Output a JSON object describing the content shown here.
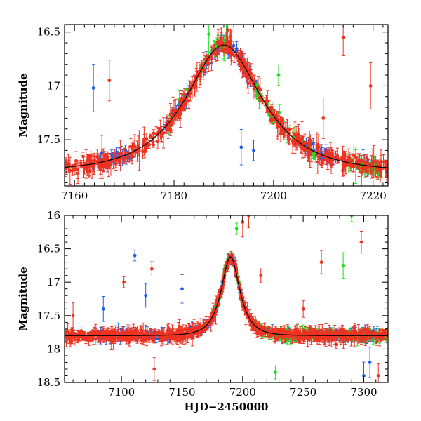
{
  "chart_data": [
    {
      "type": "scatter",
      "name": "light-curve-zoom",
      "xlabel": "",
      "ylabel": "Magnitude",
      "xlim": [
        7158,
        7223
      ],
      "ylim": [
        17.93,
        16.43
      ],
      "y_inverted": true,
      "xticks": [
        7160,
        7180,
        7200,
        7220
      ],
      "xtick_labels": [
        "7160",
        "7180",
        "7200",
        "7220"
      ],
      "yticks": [
        16.5,
        17,
        17.5
      ],
      "ytick_labels": [
        "16.5",
        "17",
        "17.5"
      ],
      "model_curve": {
        "color": "#000000",
        "peak_x": 7190,
        "peak_mag": 16.62,
        "baseline_mag": 17.8,
        "tE": 12
      },
      "series": [
        {
          "name": "blue",
          "color": "#1f5fe6",
          "ranges": [
            [
              7163,
              7172
            ],
            [
              7178,
              7183
            ],
            [
              7186,
              7197
            ],
            [
              7205,
              7212
            ],
            [
              7218,
              7221
            ]
          ],
          "outliers": [
            [
              7163.8,
              17.02
            ],
            [
              7165.5,
              17.62
            ],
            [
              7193.5,
              17.57
            ],
            [
              7196.0,
              17.6
            ]
          ]
        },
        {
          "name": "green",
          "color": "#22dd22",
          "ranges": [
            [
              7179,
              7183
            ],
            [
              7184,
              7191
            ],
            [
              7196,
              7209
            ],
            [
              7214,
              7223
            ]
          ],
          "outliers": [
            [
              7187.0,
              16.52
            ],
            [
              7190.5,
              16.42
            ],
            [
              7201.0,
              16.9
            ],
            [
              7216.5,
              17.75
            ]
          ]
        },
        {
          "name": "red",
          "color": "#ee3322",
          "ranges": [
            [
              7158,
              7223
            ]
          ],
          "outliers": [
            [
              7167.0,
              16.95
            ],
            [
              7173.0,
              17.6
            ],
            [
              7190.8,
              16.48
            ],
            [
              7210.0,
              17.3
            ],
            [
              7214.0,
              16.55
            ],
            [
              7219.5,
              17.0
            ]
          ]
        }
      ]
    },
    {
      "type": "scatter",
      "name": "light-curve-full",
      "xlabel": "HJD−2450000",
      "ylabel": "Magnitude",
      "xlim": [
        7053,
        7320
      ],
      "ylim": [
        18.5,
        16
      ],
      "y_inverted": true,
      "xticks": [
        7100,
        7150,
        7200,
        7250,
        7300
      ],
      "xtick_labels": [
        "7100",
        "7150",
        "7200",
        "7250",
        "7300"
      ],
      "yticks": [
        16,
        16.5,
        17,
        17.5,
        18,
        18.5
      ],
      "ytick_labels": [
        "16",
        "16.5",
        "17",
        "17.5",
        "18",
        "18.5"
      ],
      "model_curve": {
        "color": "#000000",
        "peak_x": 7190,
        "peak_mag": 16.62,
        "baseline_mag": 17.8,
        "tE": 12
      },
      "series": [
        {
          "name": "blue",
          "color": "#1f5fe6",
          "ranges": [
            [
              7080,
              7140
            ],
            [
              7155,
              7200
            ],
            [
              7220,
              7245
            ],
            [
              7260,
              7312
            ]
          ],
          "outliers": [
            [
              7085.0,
              17.4
            ],
            [
              7111.0,
              16.6
            ],
            [
              7120.0,
              17.2
            ],
            [
              7150.0,
              17.1
            ],
            [
              7300.0,
              18.4
            ],
            [
              7305.0,
              18.2
            ]
          ]
        },
        {
          "name": "green",
          "color": "#22dd22",
          "ranges": [
            [
              7175,
              7200
            ],
            [
              7210,
              7320
            ]
          ],
          "outliers": [
            [
              7195.0,
              16.2
            ],
            [
              7227.0,
              18.35
            ],
            [
              7283.0,
              16.75
            ],
            [
              7290.0,
              16.0
            ]
          ]
        },
        {
          "name": "red",
          "color": "#ee3322",
          "ranges": [
            [
              7053,
              7320
            ]
          ],
          "outliers": [
            [
              7060.0,
              17.5
            ],
            [
              7102.0,
              17.0
            ],
            [
              7125.0,
              16.8
            ],
            [
              7127.0,
              18.3
            ],
            [
              7200.0,
              16.1
            ],
            [
              7205.0,
              16.0
            ],
            [
              7215.0,
              16.9
            ],
            [
              7250.0,
              17.4
            ],
            [
              7265.0,
              16.7
            ],
            [
              7298.0,
              16.4
            ],
            [
              7312.0,
              18.4
            ]
          ]
        }
      ]
    }
  ]
}
